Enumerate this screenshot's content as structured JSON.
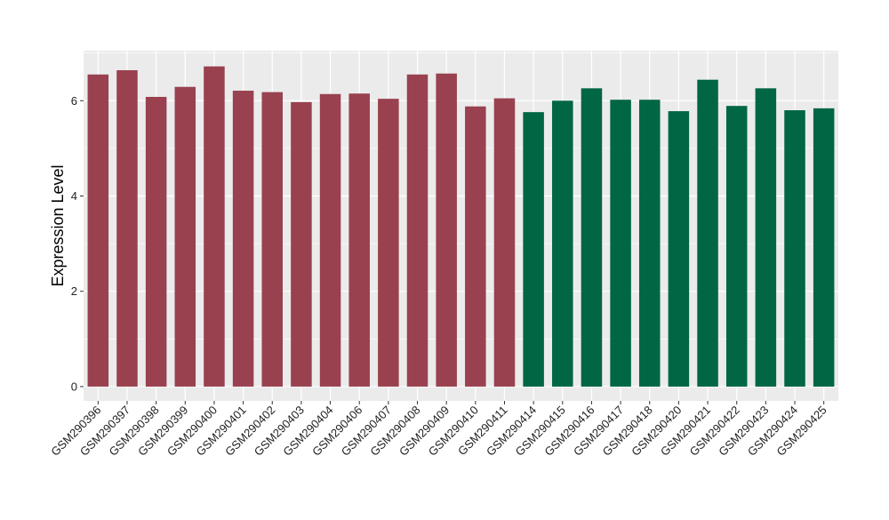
{
  "chart_data": {
    "type": "bar",
    "title": "",
    "xlabel": "",
    "ylabel": "Expression Level",
    "ylim": [
      -0.3,
      7.05
    ],
    "yticks": [
      0,
      2,
      4,
      6
    ],
    "grid": true,
    "legend": "none",
    "categories": [
      "GSM290396",
      "GSM290397",
      "GSM290398",
      "GSM290399",
      "GSM290400",
      "GSM290401",
      "GSM290402",
      "GSM290403",
      "GSM290404",
      "GSM290406",
      "GSM290407",
      "GSM290408",
      "GSM290409",
      "GSM290410",
      "GSM290411",
      "GSM290414",
      "GSM290415",
      "GSM290416",
      "GSM290417",
      "GSM290418",
      "GSM290420",
      "GSM290421",
      "GSM290422",
      "GSM290423",
      "GSM290424",
      "GSM290425"
    ],
    "values": [
      6.55,
      6.64,
      6.08,
      6.29,
      6.72,
      6.21,
      6.18,
      5.97,
      6.14,
      6.15,
      6.04,
      6.55,
      6.57,
      5.88,
      6.05,
      5.76,
      6.0,
      6.26,
      6.02,
      6.02,
      5.78,
      6.44,
      5.89,
      6.26,
      5.8,
      5.84
    ],
    "groups": [
      0,
      0,
      0,
      0,
      0,
      0,
      0,
      0,
      0,
      0,
      0,
      0,
      0,
      0,
      0,
      1,
      1,
      1,
      1,
      1,
      1,
      1,
      1,
      1,
      1,
      1
    ],
    "group_colors": [
      "#99414f",
      "#006644"
    ],
    "panel_color": "#ebebeb",
    "grid_color": "#ffffff"
  }
}
